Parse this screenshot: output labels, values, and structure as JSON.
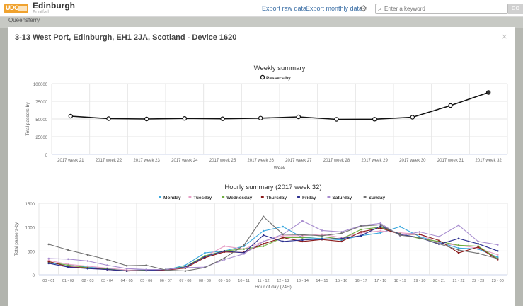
{
  "topbar": {
    "app_title": "Edinburgh",
    "app_subtitle": "Footfall",
    "export_raw": "Export raw data",
    "export_monthly": "Export monthly data",
    "search_placeholder": "Enter a keyword",
    "go_label": "GO"
  },
  "map": {
    "label": "Queensferry"
  },
  "modal": {
    "title": "3-13 West Port, Edinburgh, EH1 2JA, Scotland - Device 1620",
    "close_label": "×"
  },
  "colors": {
    "weekly_line": "#111111",
    "series": {
      "Monday": "#3aa8de",
      "Tuesday": "#e7a0c6",
      "Wednesday": "#6fae3f",
      "Thursday": "#8b1a1a",
      "Friday": "#2b2f8f",
      "Saturday": "#a78ccf",
      "Sunday": "#707070"
    }
  },
  "chart_data": [
    {
      "type": "line",
      "title": "Weekly summary",
      "xlabel": "Week",
      "ylabel": "Total passers-by",
      "ylim": [
        0,
        100000
      ],
      "yticks": [
        "0",
        "25000",
        "50000",
        "75000",
        "100000"
      ],
      "legend_position": "top-center",
      "grid": true,
      "categories": [
        "2017 week 21",
        "2017 week 22",
        "2017 week 23",
        "2017 week 24",
        "2017 week 25",
        "2017 week 26",
        "2017 week 27",
        "2017 week 28",
        "2017 week 29",
        "2017 week 30",
        "2017 week 31",
        "2017 week 32"
      ],
      "series": [
        {
          "name": "Passers-by",
          "values": [
            54000,
            50500,
            50000,
            50800,
            50300,
            51200,
            53000,
            49500,
            49700,
            52500,
            69000,
            87500
          ]
        }
      ]
    },
    {
      "type": "line",
      "title": "Hourly summary (2017 week 32)",
      "xlabel": "Hour of day (24H)",
      "ylabel": "Total passers-by",
      "ylim": [
        0,
        1500
      ],
      "yticks": [
        "0",
        "500",
        "1000",
        "1500"
      ],
      "legend_position": "top-center",
      "grid": true,
      "categories": [
        "00 - 01",
        "01 - 02",
        "02 - 03",
        "03 - 04",
        "04 - 05",
        "05 - 06",
        "06 - 07",
        "07 - 08",
        "08 - 09",
        "09 - 10",
        "10 - 11",
        "11 - 12",
        "12 - 13",
        "13 - 14",
        "14 - 15",
        "15 - 16",
        "16 - 17",
        "17 - 18",
        "18 - 19",
        "19 - 20",
        "20 - 21",
        "21 - 22",
        "22 - 23",
        "23 - 00"
      ],
      "series": [
        {
          "name": "Monday",
          "values": [
            250,
            200,
            160,
            130,
            90,
            110,
            100,
            200,
            460,
            500,
            600,
            920,
            1010,
            780,
            760,
            730,
            820,
            880,
            1010,
            800,
            680,
            560,
            540,
            370
          ]
        },
        {
          "name": "Tuesday",
          "values": [
            300,
            220,
            180,
            140,
            100,
            100,
            100,
            160,
            380,
            600,
            540,
            700,
            820,
            820,
            850,
            780,
            880,
            920,
            880,
            850,
            660,
            620,
            560,
            420
          ]
        },
        {
          "name": "Wednesday",
          "values": [
            270,
            200,
            150,
            120,
            80,
            100,
            110,
            170,
            400,
            500,
            540,
            600,
            780,
            780,
            800,
            750,
            950,
            1000,
            860,
            760,
            700,
            620,
            600,
            340
          ]
        },
        {
          "name": "Thursday",
          "values": [
            280,
            170,
            140,
            110,
            80,
            90,
            100,
            140,
            360,
            480,
            470,
            650,
            780,
            700,
            740,
            700,
            900,
            980,
            850,
            850,
            720,
            460,
            580,
            320
          ]
        },
        {
          "name": "Friday",
          "values": [
            240,
            160,
            130,
            110,
            80,
            90,
            110,
            160,
            380,
            500,
            460,
            830,
            700,
            730,
            750,
            760,
            820,
            1020,
            850,
            780,
            640,
            760,
            650,
            500
          ]
        },
        {
          "name": "Saturday",
          "values": [
            340,
            330,
            290,
            200,
            130,
            110,
            110,
            150,
            160,
            320,
            440,
            700,
            850,
            1130,
            930,
            900,
            1030,
            1080,
            820,
            900,
            800,
            1040,
            700,
            630
          ]
        },
        {
          "name": "Sunday",
          "values": [
            640,
            520,
            420,
            320,
            190,
            200,
            100,
            80,
            150,
            350,
            620,
            1220,
            850,
            840,
            820,
            870,
            1020,
            1050,
            830,
            780,
            650,
            520,
            450,
            340
          ]
        }
      ]
    }
  ]
}
